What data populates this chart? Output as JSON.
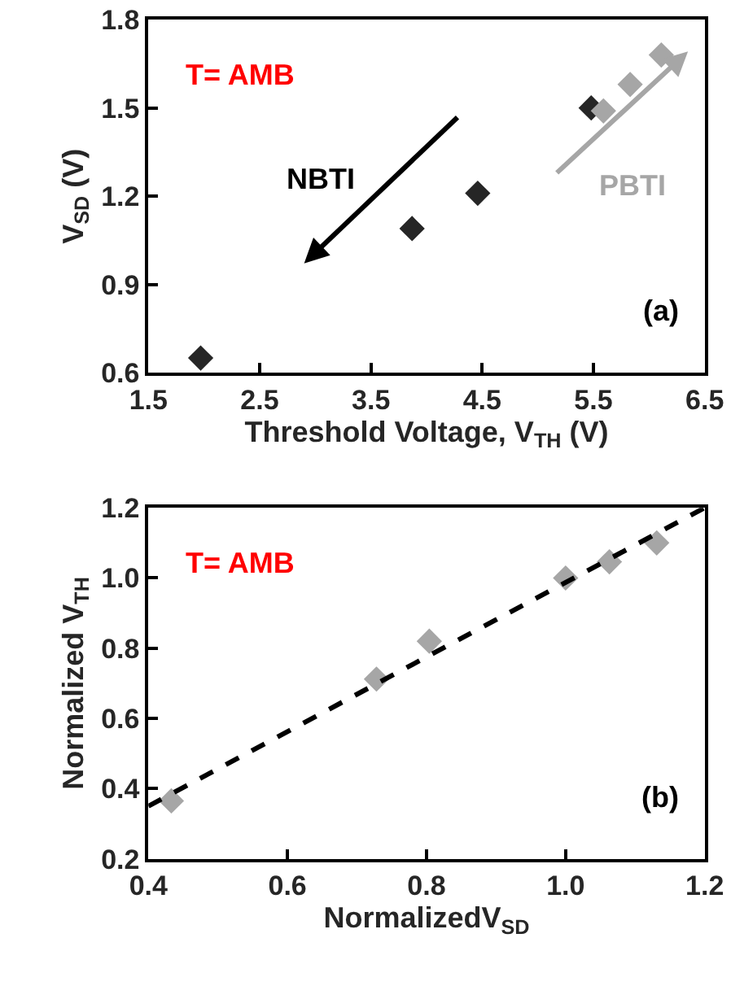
{
  "chart_data": [
    {
      "type": "scatter",
      "xlabel": "Threshold Voltage, V$_{TH}$ (V)",
      "ylabel": "V$_{SD}$ (V)",
      "annotations": [
        "T= AMB",
        "NBTI",
        "PBTI",
        "(a)"
      ],
      "series": [
        {
          "color": "#262626",
          "x": [
            1.97,
            3.87,
            4.46,
            5.48
          ],
          "values": [
            0.65,
            1.09,
            1.21,
            1.5
          ]
        },
        {
          "color": "#a6a6a6",
          "x": [
            5.59,
            5.83,
            6.11
          ],
          "values": [
            1.49,
            1.58,
            1.68
          ]
        }
      ],
      "xlim": [
        1.5,
        6.5
      ],
      "xticks": [
        1.5,
        2.5,
        3.5,
        4.5,
        5.5,
        6.5
      ],
      "ylim": [
        0.6,
        1.8
      ],
      "yticks": [
        0.6,
        0.9,
        1.2,
        1.5,
        1.8
      ],
      "grid": false,
      "marker": "diamond"
    },
    {
      "type": "scatter",
      "xlabel": "NormalizedV$_{SD}$",
      "ylabel": "Normalized V$_{TH}$",
      "annotations": [
        "T= AMB",
        "(b)"
      ],
      "series": [
        {
          "color": "#a6a6a6",
          "x": [
            0.433,
            0.728,
            0.804,
            1.0,
            1.063,
            1.131
          ],
          "values": [
            0.365,
            0.712,
            0.82,
            1.0,
            1.046,
            1.1
          ]
        },
        {
          "type": "line",
          "color": "#000000",
          "x": [
            0.4,
            1.2
          ],
          "values": [
            0.35,
            1.2
          ],
          "marker": "none",
          "line_style": "dashed"
        }
      ],
      "xlim": [
        0.4,
        1.2
      ],
      "xticks": [
        0.4,
        0.6,
        0.8,
        {
          "value": 1,
          "label": "1.0"
        },
        1.2
      ],
      "ylim": [
        0.2,
        1.2
      ],
      "yticks": [
        0.2,
        0.4,
        0.6,
        0.8,
        {
          "value": 1,
          "label": "1.0"
        },
        1.2
      ],
      "grid": false,
      "marker": "diamond"
    }
  ]
}
